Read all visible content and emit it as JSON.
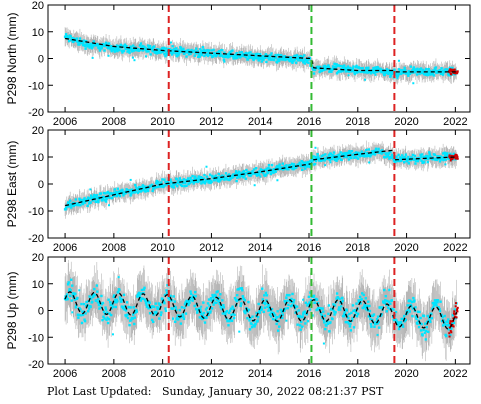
{
  "chart_data": [
    {
      "type": "scatter",
      "ylabel": "P298 North (mm)",
      "xlim": [
        2005.3,
        2022.6
      ],
      "ylim": [
        -20,
        20
      ],
      "yticks": [
        -20,
        -10,
        0,
        10,
        20
      ],
      "xticks": [
        2006,
        2008,
        2010,
        2012,
        2014,
        2016,
        2018,
        2020,
        2022
      ],
      "series": [
        {
          "kind": "daily-points-with-error-bars",
          "x": [
            2006.0,
            2007.0,
            2008.0,
            2009.0,
            2010.0,
            2011.0,
            2012.0,
            2013.0,
            2014.0,
            2015.0,
            2016.0,
            2016.2,
            2017.0,
            2018.0,
            2019.0,
            2019.5,
            2020.0,
            2021.0,
            2022.0
          ],
          "y": [
            8,
            5,
            4,
            3.5,
            3,
            2.5,
            2,
            1,
            0.5,
            0,
            -0.5,
            -4,
            -3.5,
            -4.5,
            -5,
            -6,
            -5,
            -5,
            -5
          ],
          "error": 3
        },
        {
          "kind": "model-fit-dashed",
          "x": [
            2006.0,
            2008.0,
            2010.0,
            2012.0,
            2014.0,
            2016.1,
            2016.2,
            2018.0,
            2019.45,
            2019.55,
            2022.0
          ],
          "y": [
            7.5,
            4.5,
            3,
            2,
            1,
            0,
            -3.5,
            -4.5,
            -4.5,
            -5,
            -5
          ]
        }
      ],
      "offset_lines": [
        2010.25,
        2016.1,
        2019.5
      ]
    },
    {
      "type": "scatter",
      "ylabel": "P298 East (mm)",
      "xlim": [
        2005.3,
        2022.6
      ],
      "ylim": [
        -20,
        20
      ],
      "yticks": [
        -20,
        -10,
        0,
        10,
        20
      ],
      "xticks": [
        2006,
        2008,
        2010,
        2012,
        2014,
        2016,
        2018,
        2020,
        2022
      ],
      "series": [
        {
          "kind": "daily-points-with-error-bars",
          "x": [
            2006.0,
            2007.0,
            2008.0,
            2009.0,
            2010.0,
            2011.0,
            2012.0,
            2013.0,
            2014.0,
            2015.0,
            2016.0,
            2016.2,
            2017.0,
            2018.0,
            2019.0,
            2019.5,
            2020.0,
            2021.0,
            2022.0
          ],
          "y": [
            -8,
            -6,
            -4,
            -2,
            0,
            1,
            2,
            3,
            4.5,
            6,
            7.5,
            9,
            10,
            11,
            12,
            9,
            9,
            10,
            10
          ],
          "error": 3
        },
        {
          "kind": "model-fit-dashed",
          "x": [
            2006.0,
            2008.0,
            2010.0,
            2012.0,
            2014.0,
            2016.1,
            2016.2,
            2018.0,
            2019.45,
            2019.55,
            2022.0
          ],
          "y": [
            -8,
            -4,
            0,
            2,
            4.5,
            7.5,
            9,
            11,
            12.5,
            9,
            10
          ]
        }
      ],
      "offset_lines": [
        2010.25,
        2016.1,
        2019.5
      ]
    },
    {
      "type": "scatter",
      "ylabel": "P298 Up (mm)",
      "xlim": [
        2005.3,
        2022.6
      ],
      "ylim": [
        -20,
        20
      ],
      "yticks": [
        -20,
        -10,
        0,
        10,
        20
      ],
      "xticks": [
        2006,
        2008,
        2010,
        2012,
        2014,
        2016,
        2018,
        2020,
        2022
      ],
      "series": [
        {
          "kind": "daily-points-with-error-bars",
          "x": [
            2006.0,
            2007.0,
            2008.0,
            2009.0,
            2010.0,
            2011.0,
            2012.0,
            2013.0,
            2014.0,
            2015.0,
            2016.0,
            2017.0,
            2018.0,
            2019.0,
            2020.0,
            2021.0,
            2022.0
          ],
          "y": [
            3,
            3,
            2,
            2,
            2,
            1,
            1,
            1,
            0,
            0,
            0,
            0,
            0,
            0,
            -2,
            -2,
            -3
          ],
          "error": 8,
          "seasonal_amplitude": 4
        },
        {
          "kind": "model-fit-dashed",
          "x": [
            2006.0,
            2010.0,
            2014.0,
            2018.0,
            2019.5,
            2022.0
          ],
          "y": [
            3,
            2,
            0,
            0,
            -2,
            -3
          ],
          "seasonal_amplitude": 4
        }
      ],
      "offset_lines": [
        2010.25,
        2016.1,
        2019.5
      ]
    }
  ],
  "colors": {
    "points": "#00e5ff",
    "error_bars": "#aaaaaa",
    "model": "#000000",
    "recent_points": "#cc0000",
    "offset_red": "#dd2222",
    "offset_green": "#33bb33"
  },
  "offset_line_colors": [
    "red",
    "green",
    "red"
  ],
  "footer": {
    "label": "Plot Last Updated:",
    "timestamp": "Sunday, January 30, 2022 08:21:37 PST"
  }
}
